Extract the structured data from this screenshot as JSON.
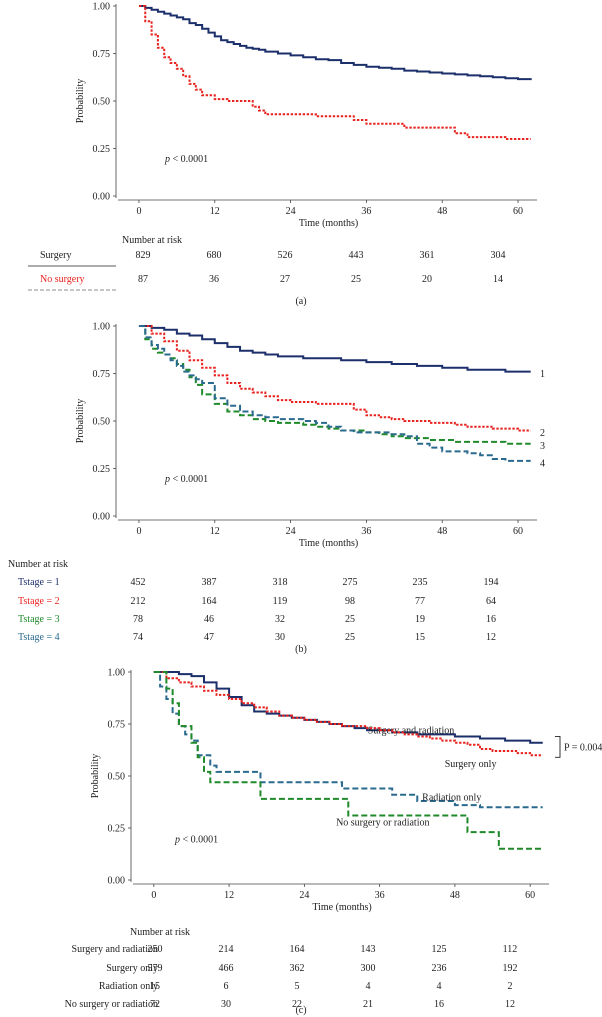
{
  "chart_data": [
    {
      "type": "line",
      "subtype": "kaplan-meier",
      "panel_label": "(a)",
      "ylabel": "Probability",
      "xlabel": "Time (months)",
      "yticks": [
        "0.00",
        "0.25",
        "0.50",
        "0.75",
        "1.00"
      ],
      "xticks": [
        "0",
        "12",
        "24",
        "36",
        "48",
        "60"
      ],
      "xlim": [
        -3,
        63
      ],
      "ylim": [
        0,
        1
      ],
      "pvalue_prefix": "p",
      "pvalue_rest": " < 0.0001",
      "series": [
        {
          "name": "Surgery",
          "color": "#1b2f6b",
          "dash": "solid",
          "x": [
            0,
            1,
            2,
            3,
            4,
            5,
            6,
            7,
            8,
            9,
            10,
            11,
            12,
            13,
            14,
            15,
            16,
            17,
            18,
            19,
            20,
            22,
            24,
            26,
            28,
            30,
            32,
            34,
            36,
            38,
            40,
            42,
            44,
            46,
            48,
            50,
            52,
            54,
            56,
            58,
            60,
            62
          ],
          "y": [
            1,
            0.99,
            0.98,
            0.97,
            0.96,
            0.95,
            0.94,
            0.93,
            0.91,
            0.9,
            0.88,
            0.86,
            0.84,
            0.82,
            0.81,
            0.8,
            0.79,
            0.78,
            0.775,
            0.77,
            0.76,
            0.75,
            0.74,
            0.73,
            0.72,
            0.715,
            0.7,
            0.69,
            0.68,
            0.675,
            0.67,
            0.66,
            0.655,
            0.65,
            0.645,
            0.64,
            0.635,
            0.63,
            0.625,
            0.62,
            0.615,
            0.61
          ]
        },
        {
          "name": "No surgery",
          "color": "#e8231f",
          "dash": "dotted",
          "x": [
            0,
            1,
            2,
            3,
            4,
            5,
            6,
            7,
            8,
            9,
            10,
            12,
            14,
            16,
            18,
            19,
            20,
            22,
            24,
            26,
            28,
            30,
            32,
            34,
            36,
            38,
            40,
            42,
            44,
            46,
            48,
            50,
            52,
            54,
            56,
            58,
            60,
            62
          ],
          "y": [
            1,
            0.92,
            0.85,
            0.78,
            0.73,
            0.7,
            0.67,
            0.63,
            0.59,
            0.56,
            0.53,
            0.51,
            0.5,
            0.5,
            0.47,
            0.45,
            0.43,
            0.43,
            0.43,
            0.43,
            0.42,
            0.42,
            0.42,
            0.4,
            0.38,
            0.38,
            0.38,
            0.36,
            0.36,
            0.36,
            0.36,
            0.33,
            0.31,
            0.31,
            0.31,
            0.3,
            0.3,
            0.3
          ]
        }
      ],
      "risk_table": {
        "title": "Number at risk",
        "rows": [
          {
            "label": "Surgery",
            "color": "#222222",
            "line": "solid",
            "values": [
              "829",
              "680",
              "526",
              "443",
              "361",
              "304"
            ]
          },
          {
            "label": "No surgery",
            "color": "#e8231f",
            "line": "dashed",
            "values": [
              "87",
              "36",
              "27",
              "25",
              "20",
              "14"
            ]
          }
        ]
      }
    },
    {
      "type": "line",
      "subtype": "kaplan-meier",
      "panel_label": "(b)",
      "ylabel": "Probability",
      "xlabel": "Time (months)",
      "yticks": [
        "0.00",
        "0.25",
        "0.50",
        "0.75",
        "1.00"
      ],
      "xticks": [
        "0",
        "12",
        "24",
        "36",
        "48",
        "60"
      ],
      "xlim": [
        -3,
        63
      ],
      "ylim": [
        0,
        1
      ],
      "pvalue_prefix": "p",
      "pvalue_rest": " < 0.0001",
      "series": [
        {
          "name": "1",
          "color": "#1b2f6b",
          "dash": "solid",
          "x": [
            0,
            2,
            4,
            6,
            8,
            10,
            12,
            14,
            16,
            18,
            20,
            22,
            24,
            26,
            28,
            30,
            32,
            34,
            36,
            38,
            40,
            42,
            44,
            46,
            48,
            50,
            52,
            54,
            56,
            58,
            60,
            62
          ],
          "y": [
            1,
            0.99,
            0.98,
            0.96,
            0.95,
            0.93,
            0.91,
            0.89,
            0.87,
            0.86,
            0.85,
            0.84,
            0.84,
            0.83,
            0.83,
            0.83,
            0.82,
            0.82,
            0.81,
            0.81,
            0.8,
            0.8,
            0.79,
            0.79,
            0.78,
            0.78,
            0.77,
            0.77,
            0.77,
            0.76,
            0.76,
            0.76
          ],
          "end_label": "1",
          "end_y": 0.75
        },
        {
          "name": "2",
          "color": "#e8231f",
          "dash": "dotted",
          "x": [
            0,
            2,
            4,
            6,
            8,
            10,
            12,
            14,
            16,
            18,
            20,
            22,
            24,
            26,
            28,
            30,
            32,
            34,
            36,
            38,
            40,
            42,
            44,
            46,
            48,
            50,
            52,
            54,
            56,
            58,
            60,
            62
          ],
          "y": [
            1,
            0.96,
            0.92,
            0.87,
            0.82,
            0.78,
            0.74,
            0.7,
            0.67,
            0.65,
            0.63,
            0.61,
            0.6,
            0.6,
            0.59,
            0.59,
            0.59,
            0.56,
            0.53,
            0.52,
            0.51,
            0.5,
            0.5,
            0.49,
            0.49,
            0.48,
            0.47,
            0.47,
            0.46,
            0.46,
            0.45,
            0.45
          ],
          "end_label": "2",
          "end_y": 0.44
        },
        {
          "name": "3",
          "color": "#1f8a2a",
          "dash": "dashed",
          "x": [
            0,
            1,
            2,
            3,
            4,
            5,
            6,
            7,
            8,
            9,
            10,
            12,
            14,
            16,
            18,
            20,
            22,
            24,
            26,
            28,
            30,
            32,
            34,
            36,
            38,
            40,
            42,
            44,
            46,
            48,
            50,
            52,
            54,
            56,
            58,
            60,
            62
          ],
          "y": [
            1,
            0.93,
            0.88,
            0.86,
            0.85,
            0.83,
            0.8,
            0.77,
            0.73,
            0.69,
            0.64,
            0.59,
            0.55,
            0.53,
            0.51,
            0.5,
            0.49,
            0.49,
            0.48,
            0.47,
            0.46,
            0.45,
            0.45,
            0.44,
            0.43,
            0.42,
            0.41,
            0.41,
            0.4,
            0.4,
            0.39,
            0.39,
            0.39,
            0.39,
            0.38,
            0.38,
            0.38
          ],
          "end_label": "3",
          "end_y": 0.37
        },
        {
          "name": "4",
          "color": "#2a6a8f",
          "dash": "dashed",
          "x": [
            0,
            1,
            2,
            3,
            4,
            5,
            6,
            7,
            8,
            9,
            10,
            12,
            14,
            16,
            18,
            20,
            22,
            24,
            26,
            28,
            30,
            32,
            34,
            36,
            38,
            40,
            42,
            44,
            46,
            48,
            50,
            52,
            54,
            56,
            58,
            60,
            62
          ],
          "y": [
            1,
            0.94,
            0.9,
            0.88,
            0.85,
            0.82,
            0.79,
            0.76,
            0.74,
            0.72,
            0.7,
            0.62,
            0.58,
            0.55,
            0.53,
            0.52,
            0.51,
            0.51,
            0.5,
            0.49,
            0.47,
            0.45,
            0.44,
            0.44,
            0.44,
            0.43,
            0.42,
            0.38,
            0.36,
            0.34,
            0.34,
            0.33,
            0.32,
            0.3,
            0.29,
            0.29,
            0.29
          ],
          "end_label": "4",
          "end_y": 0.28
        }
      ],
      "risk_table": {
        "title": "Number at risk",
        "rows": [
          {
            "label": "Tstage = 1",
            "color": "#1b2f6b",
            "values": [
              "452",
              "387",
              "318",
              "275",
              "235",
              "194"
            ]
          },
          {
            "label": "Tstage = 2",
            "color": "#e8231f",
            "values": [
              "212",
              "164",
              "119",
              "98",
              "77",
              "64"
            ]
          },
          {
            "label": "Tstage = 3",
            "color": "#1f8a2a",
            "values": [
              "78",
              "46",
              "32",
              "25",
              "19",
              "16"
            ]
          },
          {
            "label": "Tstage = 4",
            "color": "#2a6a8f",
            "values": [
              "74",
              "47",
              "30",
              "25",
              "15",
              "12"
            ]
          }
        ]
      }
    },
    {
      "type": "line",
      "subtype": "kaplan-meier",
      "panel_label": "(c)",
      "ylabel": "Probability",
      "xlabel": "Time (months)",
      "yticks": [
        "0.00",
        "0.25",
        "0.50",
        "0.75",
        "1.00"
      ],
      "xticks": [
        "0",
        "12",
        "24",
        "36",
        "48",
        "60"
      ],
      "xlim": [
        -3,
        63
      ],
      "ylim": [
        0,
        1
      ],
      "pvalue_prefix": "p",
      "pvalue_rest": " < 0.0001",
      "bracket_label": "P = 0.004",
      "series": [
        {
          "name": "Surgery and radiation",
          "color": "#1b2f6b",
          "dash": "solid",
          "x": [
            0,
            2,
            4,
            6,
            8,
            10,
            12,
            14,
            16,
            18,
            20,
            22,
            24,
            26,
            28,
            30,
            32,
            34,
            36,
            38,
            40,
            42,
            44,
            46,
            48,
            50,
            52,
            54,
            56,
            58,
            60,
            62
          ],
          "y": [
            1,
            1,
            0.99,
            0.98,
            0.95,
            0.92,
            0.88,
            0.84,
            0.81,
            0.8,
            0.79,
            0.78,
            0.77,
            0.76,
            0.75,
            0.74,
            0.73,
            0.72,
            0.72,
            0.71,
            0.71,
            0.7,
            0.7,
            0.7,
            0.69,
            0.69,
            0.68,
            0.68,
            0.67,
            0.67,
            0.66,
            0.66
          ],
          "label_x": 41,
          "label_y": 0.72
        },
        {
          "name": "Surgery only",
          "color": "#e8231f",
          "dash": "dotted",
          "x": [
            0,
            2,
            4,
            6,
            8,
            10,
            12,
            14,
            16,
            18,
            20,
            22,
            24,
            26,
            28,
            30,
            32,
            34,
            36,
            38,
            40,
            42,
            44,
            46,
            48,
            50,
            52,
            54,
            56,
            58,
            60,
            62
          ],
          "y": [
            1,
            0.97,
            0.95,
            0.93,
            0.91,
            0.89,
            0.87,
            0.85,
            0.83,
            0.81,
            0.79,
            0.78,
            0.77,
            0.76,
            0.75,
            0.74,
            0.74,
            0.73,
            0.72,
            0.71,
            0.7,
            0.69,
            0.68,
            0.67,
            0.66,
            0.65,
            0.63,
            0.62,
            0.62,
            0.61,
            0.6,
            0.6
          ],
          "label_x": 50.5,
          "label_y": 0.56
        },
        {
          "name": "Radiation only",
          "color": "#2a6a8f",
          "dash": "dashed",
          "x": [
            0,
            1,
            2,
            3,
            4,
            5,
            6,
            7,
            8,
            9,
            10,
            12,
            14,
            16,
            17,
            18,
            20,
            22,
            24,
            26,
            28,
            30,
            32,
            34,
            36,
            38,
            40,
            42,
            44,
            46,
            48,
            50,
            52,
            54,
            56,
            58,
            60,
            62
          ],
          "y": [
            1,
            0.93,
            0.87,
            0.8,
            0.74,
            0.7,
            0.67,
            0.6,
            0.6,
            0.55,
            0.52,
            0.52,
            0.52,
            0.52,
            0.47,
            0.47,
            0.47,
            0.47,
            0.47,
            0.47,
            0.47,
            0.44,
            0.44,
            0.44,
            0.44,
            0.41,
            0.41,
            0.38,
            0.38,
            0.38,
            0.36,
            0.36,
            0.35,
            0.35,
            0.35,
            0.35,
            0.35,
            0.35
          ],
          "label_x": 47.5,
          "label_y": 0.4
        },
        {
          "name": "No surgery or radiation",
          "color": "#1f8a2a",
          "dash": "dashed",
          "x": [
            0,
            1,
            2,
            3,
            4,
            5,
            6,
            7,
            8,
            9,
            10,
            12,
            14,
            16,
            17,
            18,
            20,
            22,
            24,
            26,
            28,
            30,
            31,
            32,
            34,
            36,
            38,
            40,
            42,
            44,
            46,
            48,
            50,
            52,
            54,
            55,
            56,
            58,
            60,
            62
          ],
          "y": [
            1,
            1,
            0.92,
            0.85,
            0.74,
            0.74,
            0.66,
            0.59,
            0.52,
            0.47,
            0.47,
            0.47,
            0.47,
            0.47,
            0.39,
            0.39,
            0.39,
            0.39,
            0.39,
            0.39,
            0.39,
            0.39,
            0.31,
            0.31,
            0.31,
            0.31,
            0.31,
            0.31,
            0.31,
            0.31,
            0.31,
            0.31,
            0.23,
            0.23,
            0.23,
            0.15,
            0.15,
            0.15,
            0.15,
            0.15
          ],
          "label_x": 36.5,
          "label_y": 0.28
        }
      ],
      "risk_table": {
        "title": "Number at risk",
        "rows": [
          {
            "label": "Surgery and radiation",
            "color": "#222222",
            "values": [
              "250",
              "214",
              "164",
              "143",
              "125",
              "112"
            ]
          },
          {
            "label": "Surgery only",
            "color": "#222222",
            "values": [
              "579",
              "466",
              "362",
              "300",
              "236",
              "192"
            ]
          },
          {
            "label": "Radiation only",
            "color": "#222222",
            "values": [
              "15",
              "6",
              "5",
              "4",
              "4",
              "2"
            ]
          },
          {
            "label": "No surgery or radiation",
            "color": "#222222",
            "values": [
              "72",
              "30",
              "22",
              "21",
              "16",
              "12"
            ]
          }
        ]
      }
    }
  ]
}
